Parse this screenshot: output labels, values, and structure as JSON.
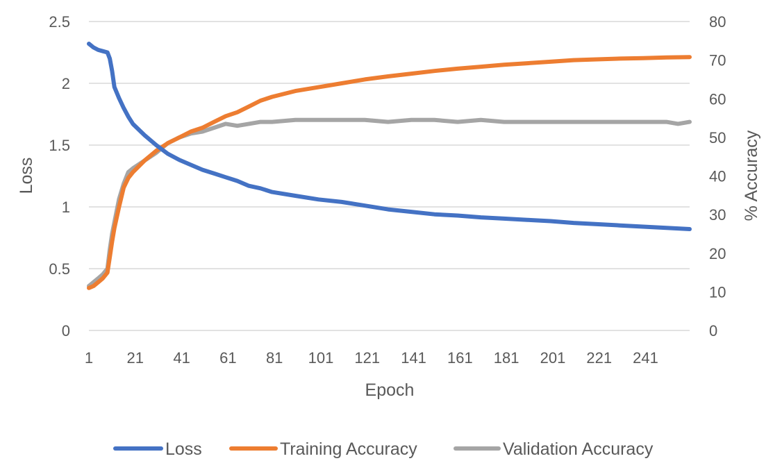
{
  "chart_data": {
    "type": "line",
    "title": "",
    "xlabel": "Epoch",
    "ylabel": "Loss",
    "y2label": "% Accuracy",
    "xlim": [
      1,
      260
    ],
    "ylim": [
      0,
      2.5
    ],
    "y2lim": [
      0,
      80
    ],
    "x_ticks": [
      "1",
      "21",
      "41",
      "61",
      "81",
      "101",
      "121",
      "141",
      "161",
      "181",
      "201",
      "221",
      "241"
    ],
    "y_ticks": [
      "0",
      "0.5",
      "1",
      "1.5",
      "2",
      "2.5"
    ],
    "y2_ticks": [
      "0",
      "10",
      "20",
      "30",
      "40",
      "50",
      "60",
      "70",
      "80"
    ],
    "grid": true,
    "legend_position": "bottom",
    "series": [
      {
        "name": "Loss",
        "axis": "left",
        "color": "#4472c4",
        "x": [
          1,
          3,
          5,
          7,
          9,
          10,
          11,
          12,
          14,
          16,
          18,
          20,
          25,
          30,
          35,
          40,
          45,
          50,
          55,
          60,
          65,
          70,
          75,
          80,
          90,
          100,
          110,
          120,
          130,
          140,
          150,
          160,
          170,
          180,
          190,
          200,
          210,
          220,
          230,
          240,
          250,
          260
        ],
        "values": [
          2.32,
          2.29,
          2.27,
          2.26,
          2.25,
          2.2,
          2.1,
          1.97,
          1.88,
          1.8,
          1.73,
          1.67,
          1.58,
          1.5,
          1.43,
          1.38,
          1.34,
          1.3,
          1.27,
          1.24,
          1.21,
          1.17,
          1.15,
          1.12,
          1.09,
          1.06,
          1.04,
          1.01,
          0.98,
          0.96,
          0.94,
          0.93,
          0.915,
          0.905,
          0.895,
          0.885,
          0.87,
          0.86,
          0.85,
          0.84,
          0.83,
          0.82
        ]
      },
      {
        "name": "Training Accuracy",
        "axis": "right",
        "color": "#ed7d31",
        "x": [
          1,
          3,
          5,
          7,
          9,
          10,
          11,
          12,
          14,
          16,
          18,
          20,
          25,
          30,
          35,
          40,
          45,
          50,
          55,
          60,
          65,
          70,
          75,
          80,
          90,
          100,
          110,
          120,
          130,
          140,
          150,
          160,
          170,
          180,
          190,
          200,
          210,
          220,
          230,
          240,
          250,
          260
        ],
        "values": [
          11,
          11.5,
          12.5,
          13.5,
          15,
          19,
          23,
          26.5,
          32,
          37,
          39.5,
          41,
          44,
          46.5,
          48.5,
          50,
          51.5,
          52.5,
          54,
          55.5,
          56.5,
          58,
          59.5,
          60.5,
          62,
          63,
          64,
          65,
          65.8,
          66.5,
          67.2,
          67.8,
          68.3,
          68.8,
          69.2,
          69.6,
          70,
          70.2,
          70.4,
          70.5,
          70.7,
          70.8
        ]
      },
      {
        "name": "Validation Accuracy",
        "axis": "right",
        "color": "#a5a5a5",
        "x": [
          1,
          3,
          5,
          7,
          9,
          10,
          11,
          12,
          14,
          16,
          18,
          20,
          25,
          30,
          35,
          40,
          45,
          50,
          55,
          60,
          65,
          70,
          75,
          80,
          90,
          100,
          110,
          120,
          130,
          140,
          150,
          160,
          170,
          180,
          190,
          200,
          210,
          220,
          230,
          240,
          250,
          255,
          260
        ],
        "values": [
          11.5,
          12.5,
          13.5,
          14.5,
          16,
          21,
          25,
          28,
          34,
          38,
          41,
          42,
          44,
          46,
          48.5,
          50,
          51,
          51.5,
          52.5,
          53.5,
          53,
          53.5,
          54,
          54,
          54.5,
          54.5,
          54.5,
          54.5,
          54,
          54.5,
          54.5,
          54,
          54.5,
          54,
          54,
          54,
          54,
          54,
          54,
          54,
          54,
          53.5,
          54
        ]
      }
    ]
  }
}
